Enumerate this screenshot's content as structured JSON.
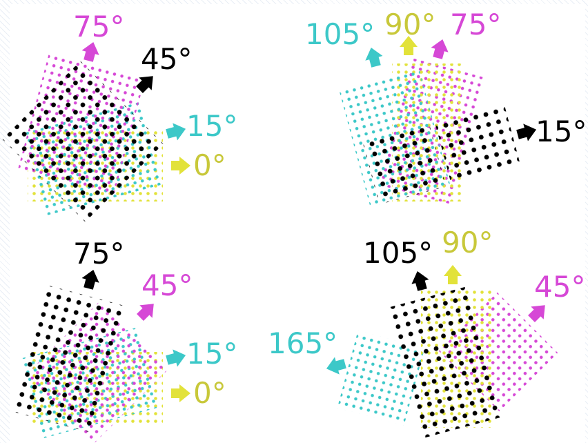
{
  "colors": {
    "cyan": "#3cc8c8",
    "magenta": "#d648d6",
    "yellow": "#e2e23a",
    "yellow_text": "#c8c83a",
    "black": "#000000"
  },
  "panels": [
    {
      "id": "top-left",
      "angles": [
        {
          "channel": "magenta",
          "label": "75°"
        },
        {
          "channel": "black",
          "label": "45°"
        },
        {
          "channel": "cyan",
          "label": "15°"
        },
        {
          "channel": "yellow",
          "label": "0°"
        }
      ]
    },
    {
      "id": "top-right",
      "angles": [
        {
          "channel": "cyan",
          "label": "105°"
        },
        {
          "channel": "yellow",
          "label": "90°"
        },
        {
          "channel": "magenta",
          "label": "75°"
        },
        {
          "channel": "black",
          "label": "15°"
        }
      ]
    },
    {
      "id": "bottom-left",
      "angles": [
        {
          "channel": "black",
          "label": "75°"
        },
        {
          "channel": "magenta",
          "label": "45°"
        },
        {
          "channel": "cyan",
          "label": "15°"
        },
        {
          "channel": "yellow",
          "label": "0°"
        }
      ]
    },
    {
      "id": "bottom-right",
      "angles": [
        {
          "channel": "black",
          "label": "105°"
        },
        {
          "channel": "yellow",
          "label": "90°"
        },
        {
          "channel": "magenta",
          "label": "45°"
        },
        {
          "channel": "cyan",
          "label": "165°"
        }
      ]
    }
  ]
}
